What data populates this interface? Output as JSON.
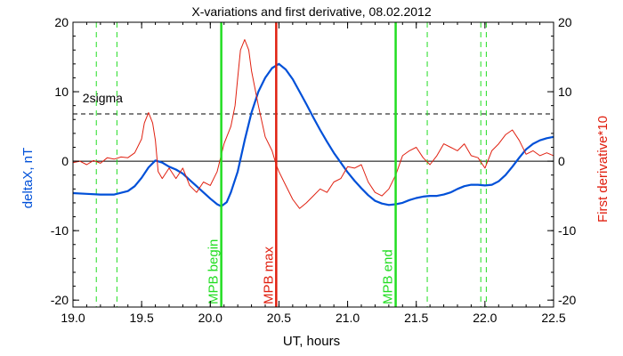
{
  "chart_data": {
    "type": "line",
    "title": "X-variations and first derivative, 08.02.2012",
    "xlabel": "UT, hours",
    "ylabel": "deltaX, nT",
    "ylabel_right": "First derivative*10",
    "xlim": [
      19.0,
      22.5
    ],
    "ylim": [
      -21,
      20
    ],
    "x_ticks": [
      19.0,
      19.5,
      20.0,
      20.5,
      21.0,
      21.5,
      22.0,
      22.5
    ],
    "x_tick_labels": [
      "19.0",
      "19.5",
      "20.0",
      "20.5",
      "21.0",
      "21.5",
      "22.0",
      "22.5"
    ],
    "y_ticks": [
      -20,
      -10,
      0,
      10,
      20
    ],
    "y_tick_labels": [
      "-20",
      "-10",
      "0",
      "10",
      "20"
    ],
    "y_right_tick_labels": [
      "-20",
      "-10",
      "0",
      "10",
      "20"
    ],
    "colors": {
      "deltaX": "#0050d8",
      "derivative": "#e02010",
      "mpb_boundary": "#22dd22",
      "mpb_max": "#e02010",
      "left_label": "#0050d8",
      "right_label": "#e02010",
      "sigma": "#000000"
    },
    "sigma": {
      "value": 6.8,
      "label": "2sigma"
    },
    "zero_line": 0,
    "vlines": [
      {
        "x": 20.08,
        "label": "MPB begin",
        "kind": "mpb_boundary"
      },
      {
        "x": 20.48,
        "label": "MPB max",
        "kind": "mpb_max"
      },
      {
        "x": 21.35,
        "label": "MPB end",
        "kind": "mpb_boundary"
      }
    ],
    "dashed_vlines": [
      19.17,
      19.32,
      21.58,
      21.97,
      22.01
    ],
    "series": [
      {
        "key": "deltaX",
        "axis": "left",
        "x": [
          19.0,
          19.1,
          19.2,
          19.3,
          19.4,
          19.45,
          19.5,
          19.55,
          19.6,
          19.65,
          19.7,
          19.75,
          19.8,
          19.85,
          19.9,
          19.95,
          20.0,
          20.05,
          20.08,
          20.12,
          20.15,
          20.2,
          20.25,
          20.3,
          20.35,
          20.4,
          20.45,
          20.5,
          20.55,
          20.6,
          20.65,
          20.7,
          20.75,
          20.8,
          20.85,
          20.9,
          20.95,
          21.0,
          21.05,
          21.1,
          21.15,
          21.2,
          21.25,
          21.3,
          21.35,
          21.4,
          21.45,
          21.5,
          21.55,
          21.6,
          21.65,
          21.7,
          21.75,
          21.8,
          21.85,
          21.9,
          21.95,
          22.0,
          22.05,
          22.1,
          22.15,
          22.2,
          22.25,
          22.3,
          22.35,
          22.4,
          22.45,
          22.5
        ],
        "y": [
          -4.6,
          -4.7,
          -4.8,
          -4.8,
          -4.3,
          -3.6,
          -2.4,
          -0.9,
          0.1,
          -0.2,
          -0.8,
          -1.2,
          -1.8,
          -2.7,
          -3.6,
          -4.5,
          -5.4,
          -6.2,
          -6.5,
          -5.9,
          -4.5,
          -1.5,
          3.0,
          7.0,
          10.0,
          12.0,
          13.4,
          14.0,
          13.2,
          11.8,
          10.0,
          8.2,
          6.3,
          4.5,
          2.8,
          1.2,
          -0.2,
          -1.6,
          -2.8,
          -3.9,
          -4.9,
          -5.7,
          -6.1,
          -6.3,
          -6.2,
          -6.0,
          -5.6,
          -5.3,
          -5.1,
          -5.0,
          -5.0,
          -4.8,
          -4.5,
          -4.0,
          -3.6,
          -3.4,
          -3.4,
          -3.5,
          -3.4,
          -2.9,
          -2.0,
          -0.8,
          0.5,
          1.7,
          2.5,
          3.0,
          3.3,
          3.5
        ]
      },
      {
        "key": "derivative",
        "axis": "right",
        "x": [
          19.0,
          19.05,
          19.1,
          19.15,
          19.2,
          19.25,
          19.3,
          19.35,
          19.4,
          19.45,
          19.5,
          19.52,
          19.55,
          19.58,
          19.6,
          19.62,
          19.65,
          19.7,
          19.75,
          19.8,
          19.85,
          19.9,
          19.95,
          20.0,
          20.05,
          20.1,
          20.15,
          20.18,
          20.2,
          20.22,
          20.25,
          20.28,
          20.3,
          20.35,
          20.4,
          20.45,
          20.48,
          20.5,
          20.55,
          20.6,
          20.65,
          20.7,
          20.75,
          20.8,
          20.85,
          20.9,
          20.95,
          21.0,
          21.05,
          21.1,
          21.15,
          21.2,
          21.25,
          21.3,
          21.35,
          21.4,
          21.45,
          21.5,
          21.55,
          21.6,
          21.65,
          21.7,
          21.75,
          21.8,
          21.85,
          21.9,
          21.95,
          22.0,
          22.05,
          22.1,
          22.15,
          22.2,
          22.25,
          22.3,
          22.35,
          22.4,
          22.45,
          22.5
        ],
        "y": [
          -0.2,
          0.0,
          -0.5,
          0.1,
          -0.3,
          0.5,
          0.3,
          0.6,
          0.5,
          1.2,
          3.2,
          5.5,
          7.0,
          5.5,
          3.0,
          -1.5,
          -2.5,
          -1.0,
          -2.5,
          -1.0,
          -3.5,
          -4.5,
          -3.0,
          -3.5,
          -1.5,
          2.5,
          5.0,
          8.0,
          12.0,
          16.0,
          17.5,
          16.0,
          13.0,
          8.0,
          3.5,
          1.5,
          -0.5,
          -1.5,
          -3.5,
          -5.5,
          -6.8,
          -6.0,
          -5.0,
          -4.0,
          -4.5,
          -3.0,
          -2.5,
          -0.8,
          -1.0,
          -0.5,
          -3.0,
          -4.5,
          -5.0,
          -4.0,
          -2.0,
          0.8,
          1.5,
          2.0,
          0.5,
          -0.5,
          0.8,
          2.5,
          2.0,
          1.5,
          2.5,
          0.8,
          0.5,
          -1.0,
          1.5,
          2.5,
          3.8,
          4.5,
          3.0,
          1.0,
          1.5,
          0.8,
          1.2,
          0.8
        ]
      }
    ]
  }
}
